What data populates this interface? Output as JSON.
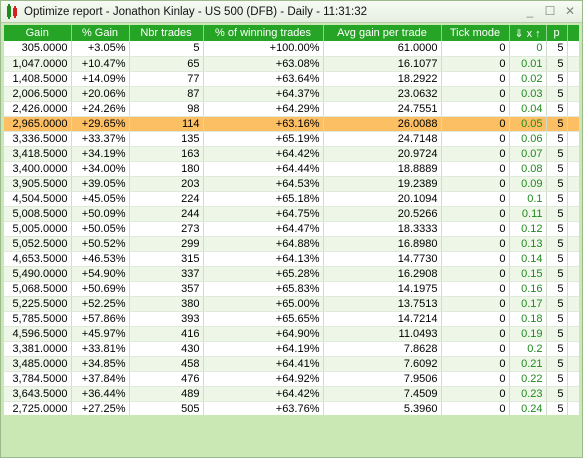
{
  "window": {
    "title": "Optimize report - Jonathon Kinlay - US 500 (DFB) - Daily - 11:31:32",
    "controls": {
      "minimize": "_",
      "maximize": "☐",
      "close": "✕"
    }
  },
  "table": {
    "columns": [
      "Gain",
      "% Gain",
      "Nbr trades",
      "% of winning trades",
      "Avg gain per trade",
      "Tick mode",
      "⇓ x ↑",
      "p"
    ],
    "selected_row": 5,
    "rows": [
      [
        "305.0000",
        "+3.05%",
        "5",
        "+100.00%",
        "61.0000",
        "0",
        "0",
        "5"
      ],
      [
        "1,047.0000",
        "+10.47%",
        "65",
        "+63.08%",
        "16.1077",
        "0",
        "0.01",
        "5"
      ],
      [
        "1,408.5000",
        "+14.09%",
        "77",
        "+63.64%",
        "18.2922",
        "0",
        "0.02",
        "5"
      ],
      [
        "2,006.5000",
        "+20.06%",
        "87",
        "+64.37%",
        "23.0632",
        "0",
        "0.03",
        "5"
      ],
      [
        "2,426.0000",
        "+24.26%",
        "98",
        "+64.29%",
        "24.7551",
        "0",
        "0.04",
        "5"
      ],
      [
        "2,965.0000",
        "+29.65%",
        "114",
        "+63.16%",
        "26.0088",
        "0",
        "0.05",
        "5"
      ],
      [
        "3,336.5000",
        "+33.37%",
        "135",
        "+65.19%",
        "24.7148",
        "0",
        "0.06",
        "5"
      ],
      [
        "3,418.5000",
        "+34.19%",
        "163",
        "+64.42%",
        "20.9724",
        "0",
        "0.07",
        "5"
      ],
      [
        "3,400.0000",
        "+34.00%",
        "180",
        "+64.44%",
        "18.8889",
        "0",
        "0.08",
        "5"
      ],
      [
        "3,905.5000",
        "+39.05%",
        "203",
        "+64.53%",
        "19.2389",
        "0",
        "0.09",
        "5"
      ],
      [
        "4,504.5000",
        "+45.05%",
        "224",
        "+65.18%",
        "20.1094",
        "0",
        "0.1",
        "5"
      ],
      [
        "5,008.5000",
        "+50.09%",
        "244",
        "+64.75%",
        "20.5266",
        "0",
        "0.11",
        "5"
      ],
      [
        "5,005.0000",
        "+50.05%",
        "273",
        "+64.47%",
        "18.3333",
        "0",
        "0.12",
        "5"
      ],
      [
        "5,052.5000",
        "+50.52%",
        "299",
        "+64.88%",
        "16.8980",
        "0",
        "0.13",
        "5"
      ],
      [
        "4,653.5000",
        "+46.53%",
        "315",
        "+64.13%",
        "14.7730",
        "0",
        "0.14",
        "5"
      ],
      [
        "5,490.0000",
        "+54.90%",
        "337",
        "+65.28%",
        "16.2908",
        "0",
        "0.15",
        "5"
      ],
      [
        "5,068.5000",
        "+50.69%",
        "357",
        "+65.83%",
        "14.1975",
        "0",
        "0.16",
        "5"
      ],
      [
        "5,225.5000",
        "+52.25%",
        "380",
        "+65.00%",
        "13.7513",
        "0",
        "0.17",
        "5"
      ],
      [
        "5,785.5000",
        "+57.86%",
        "393",
        "+65.65%",
        "14.7214",
        "0",
        "0.18",
        "5"
      ],
      [
        "4,596.5000",
        "+45.97%",
        "416",
        "+64.90%",
        "11.0493",
        "0",
        "0.19",
        "5"
      ],
      [
        "3,381.0000",
        "+33.81%",
        "430",
        "+64.19%",
        "7.8628",
        "0",
        "0.2",
        "5"
      ],
      [
        "3,485.0000",
        "+34.85%",
        "458",
        "+64.41%",
        "7.6092",
        "0",
        "0.21",
        "5"
      ],
      [
        "3,784.5000",
        "+37.84%",
        "476",
        "+64.92%",
        "7.9506",
        "0",
        "0.22",
        "5"
      ],
      [
        "3,643.5000",
        "+36.44%",
        "489",
        "+64.42%",
        "7.4509",
        "0",
        "0.23",
        "5"
      ],
      [
        "2,725.0000",
        "+27.25%",
        "505",
        "+63.76%",
        "5.3960",
        "0",
        "0.24",
        "5"
      ]
    ]
  },
  "colors": {
    "header_bg": "#25a425",
    "selected_row": "#fdbf64",
    "ratio_text": "#1f8a1f",
    "window_bg": "#c9e8b4"
  }
}
